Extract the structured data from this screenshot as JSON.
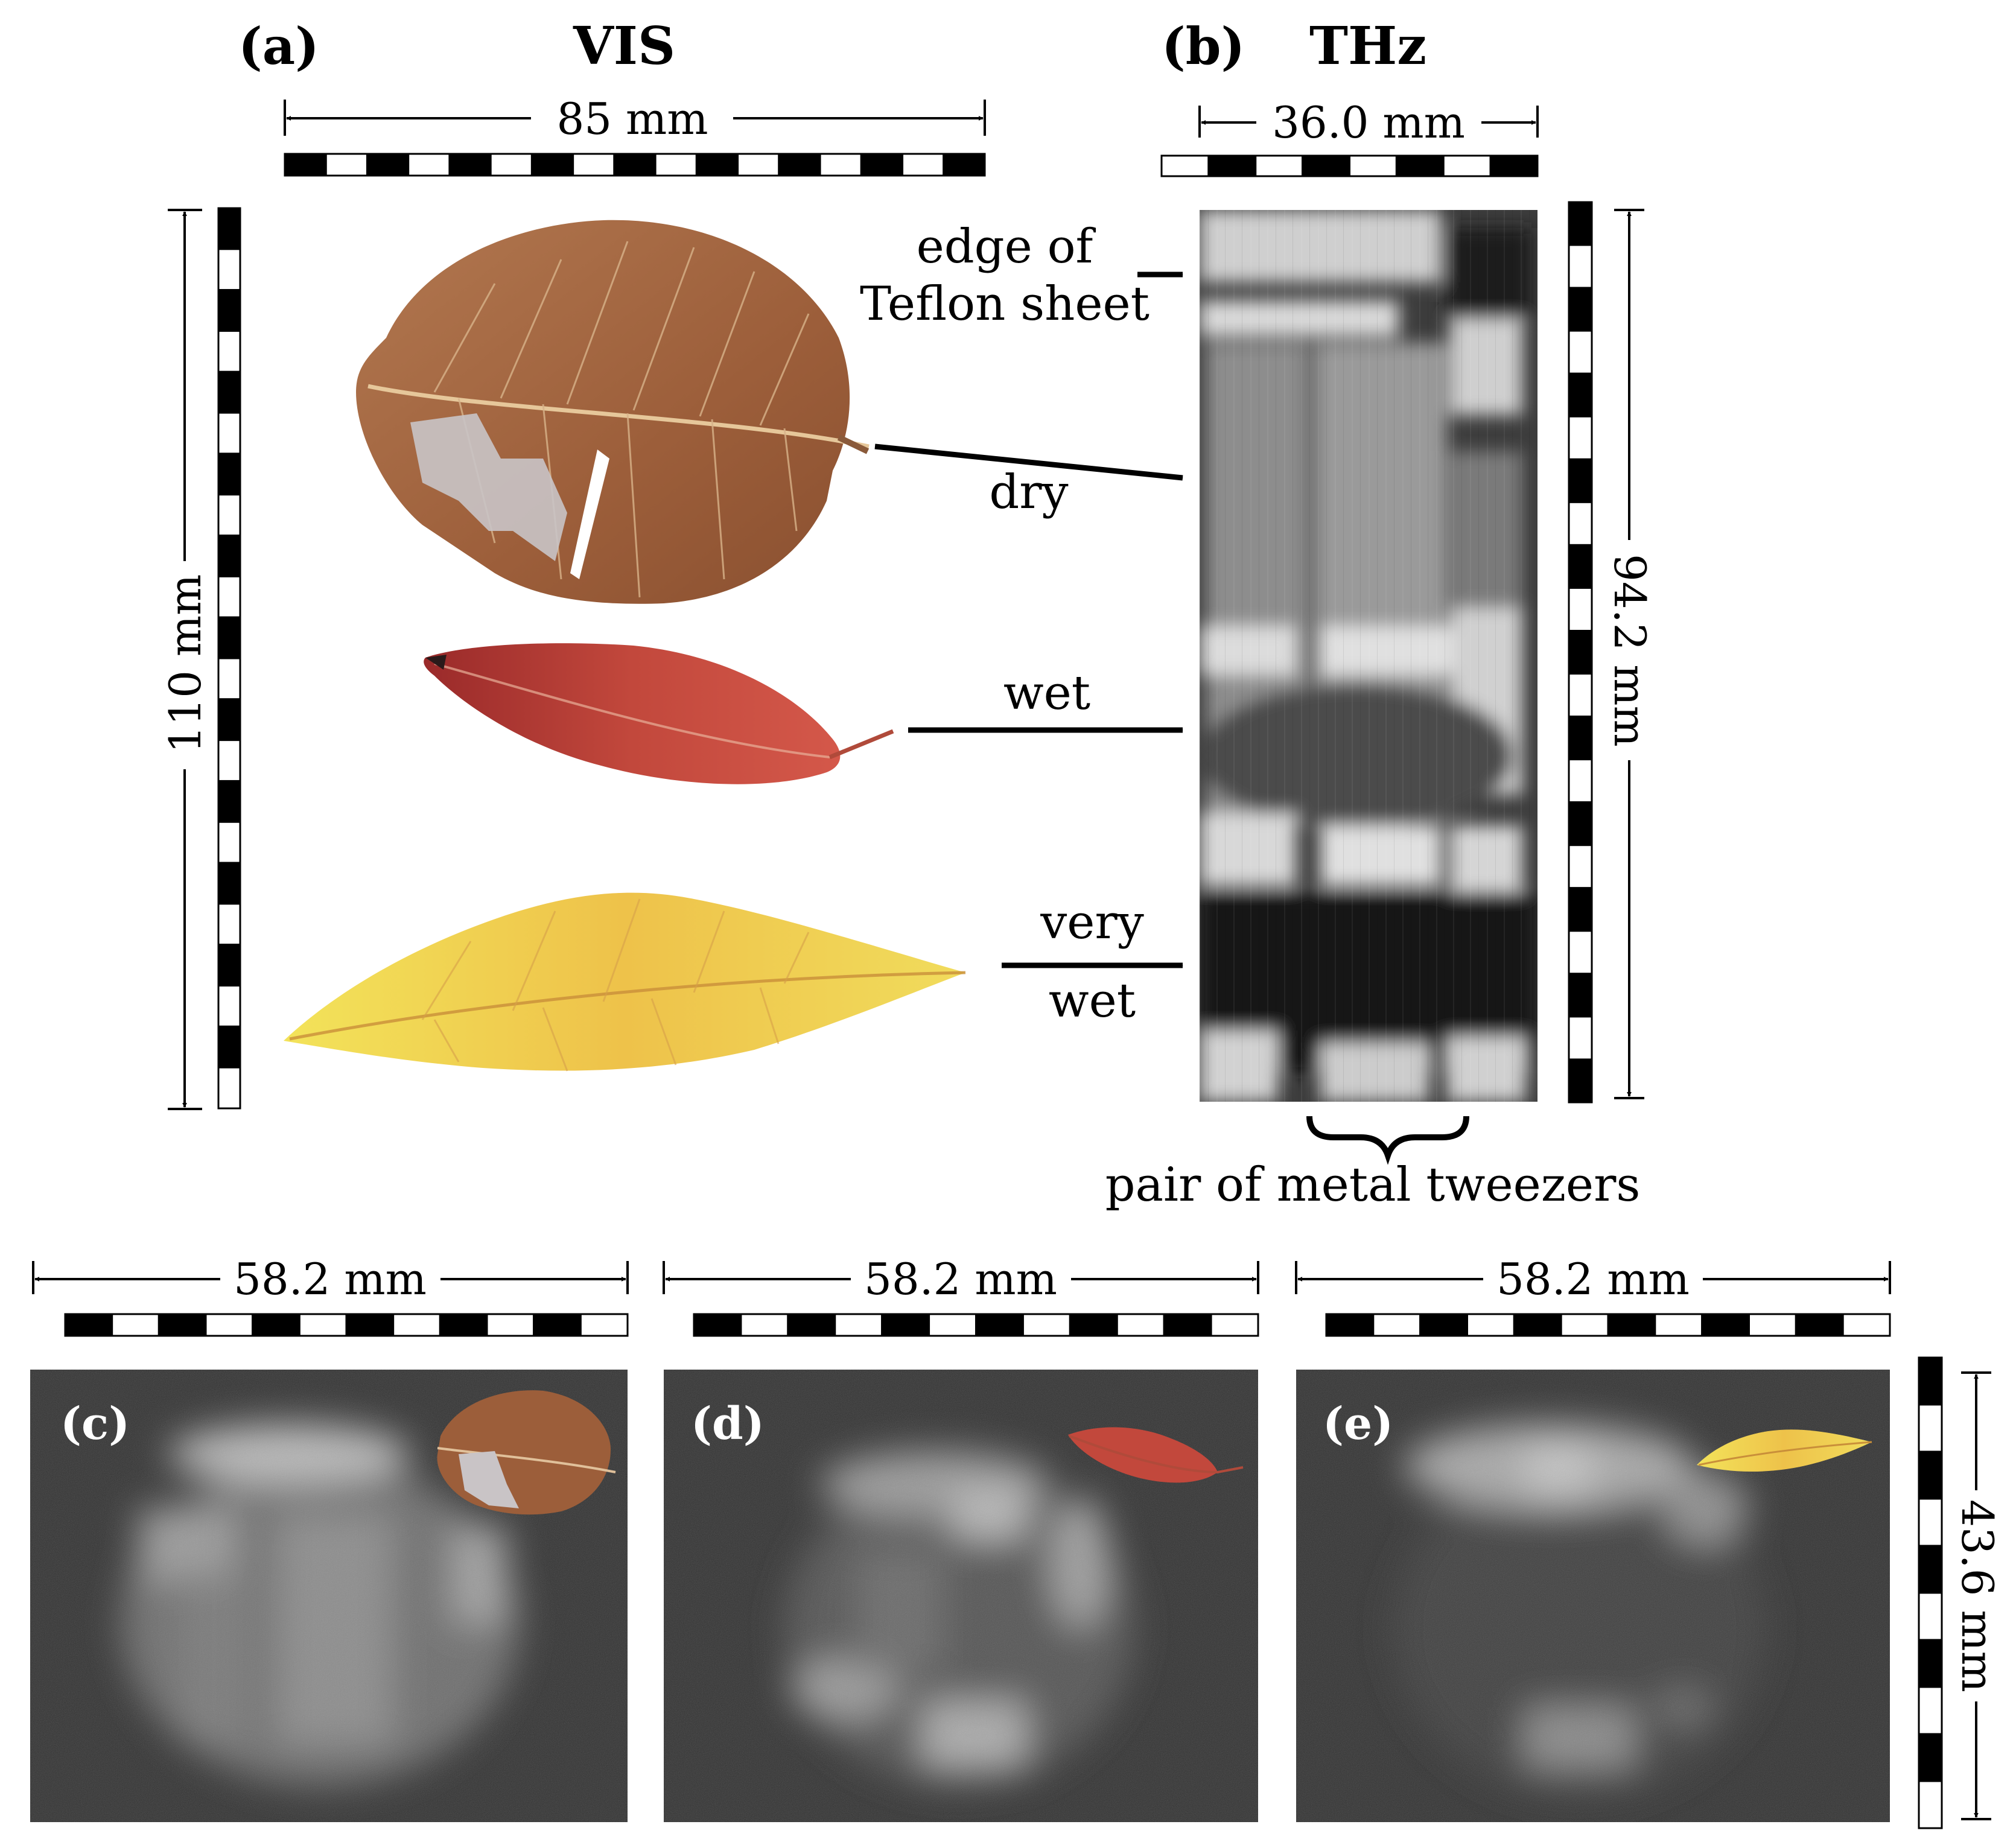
{
  "panels": {
    "a": "(a)",
    "b": "(b)",
    "c": "(c)",
    "d": "(d)",
    "e": "(e)"
  },
  "headers": {
    "vis": "VIS",
    "thz": "THz"
  },
  "dimensions": {
    "vis_width": "85 mm",
    "vis_height": "110 mm",
    "thz_width": "36.0 mm",
    "thz_height": "94.2 mm",
    "c_width": "58.2 mm",
    "d_width": "58.2 mm",
    "e_width": "58.2 mm",
    "bottom_height": "43.6 mm"
  },
  "annotations": {
    "edge_line1": "edge of",
    "edge_line2": "Teflon sheet",
    "dry": "dry",
    "wet": "wet",
    "very_wet_line1": "very",
    "very_wet_line2": "wet",
    "tweezers": "pair of metal tweezers"
  },
  "leaves": [
    {
      "id": "dry-leaf",
      "state": "dry",
      "color": "#a2663f"
    },
    {
      "id": "wet-leaf",
      "state": "wet",
      "color": "#c0433a"
    },
    {
      "id": "very-wet-leaf",
      "state": "very wet",
      "color": "#ebc549"
    }
  ],
  "colors": {
    "thz_background": "#3a3a3a",
    "thz_bright": "#d8d8d8",
    "scale_black": "#000000",
    "scale_white": "#ffffff"
  }
}
